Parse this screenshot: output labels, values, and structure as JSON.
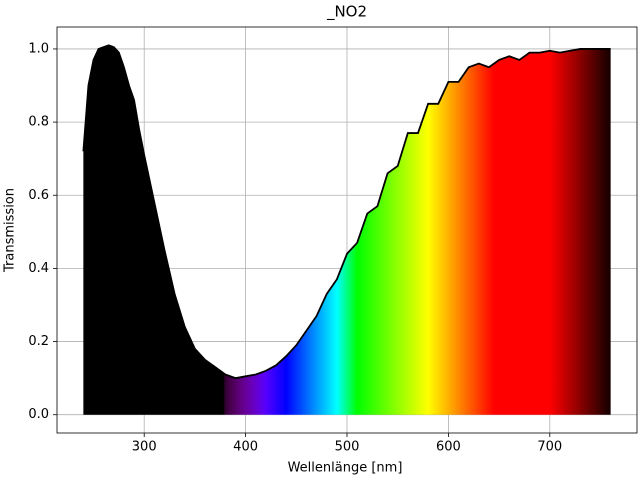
{
  "chart_data": {
    "type": "area",
    "title": "_NO2",
    "xlabel": "Wellenlänge [nm]",
    "ylabel": "Transmission",
    "x": [
      240,
      245,
      250,
      255,
      260,
      265,
      270,
      275,
      280,
      285,
      290,
      295,
      300,
      310,
      320,
      330,
      340,
      350,
      360,
      370,
      380,
      390,
      400,
      410,
      420,
      430,
      440,
      450,
      460,
      470,
      480,
      490,
      500,
      510,
      520,
      530,
      540,
      550,
      560,
      570,
      580,
      590,
      600,
      610,
      620,
      630,
      640,
      650,
      660,
      670,
      680,
      690,
      700,
      710,
      720,
      730,
      740,
      750,
      760
    ],
    "values": [
      0.72,
      0.9,
      0.97,
      1.0,
      1.005,
      1.01,
      1.005,
      0.99,
      0.95,
      0.9,
      0.86,
      0.78,
      0.71,
      0.58,
      0.45,
      0.33,
      0.24,
      0.18,
      0.15,
      0.13,
      0.11,
      0.1,
      0.105,
      0.11,
      0.12,
      0.135,
      0.16,
      0.19,
      0.23,
      0.27,
      0.33,
      0.37,
      0.44,
      0.47,
      0.55,
      0.57,
      0.66,
      0.68,
      0.77,
      0.77,
      0.85,
      0.85,
      0.91,
      0.91,
      0.95,
      0.96,
      0.95,
      0.97,
      0.98,
      0.97,
      0.99,
      0.99,
      0.995,
      0.99,
      0.995,
      1.0,
      1.0,
      1.0,
      1.0
    ],
    "color": "#000000",
    "xlim": [
      214,
      786
    ],
    "ylim": [
      -0.05,
      1.06
    ],
    "xticks": [
      300,
      400,
      500,
      600,
      700
    ],
    "yticks": [
      {
        "value": 0,
        "label": "0.0"
      },
      0.2,
      0.4,
      0.6,
      0.8,
      {
        "value": 1,
        "label": "1.0"
      }
    ],
    "grid": true
  }
}
